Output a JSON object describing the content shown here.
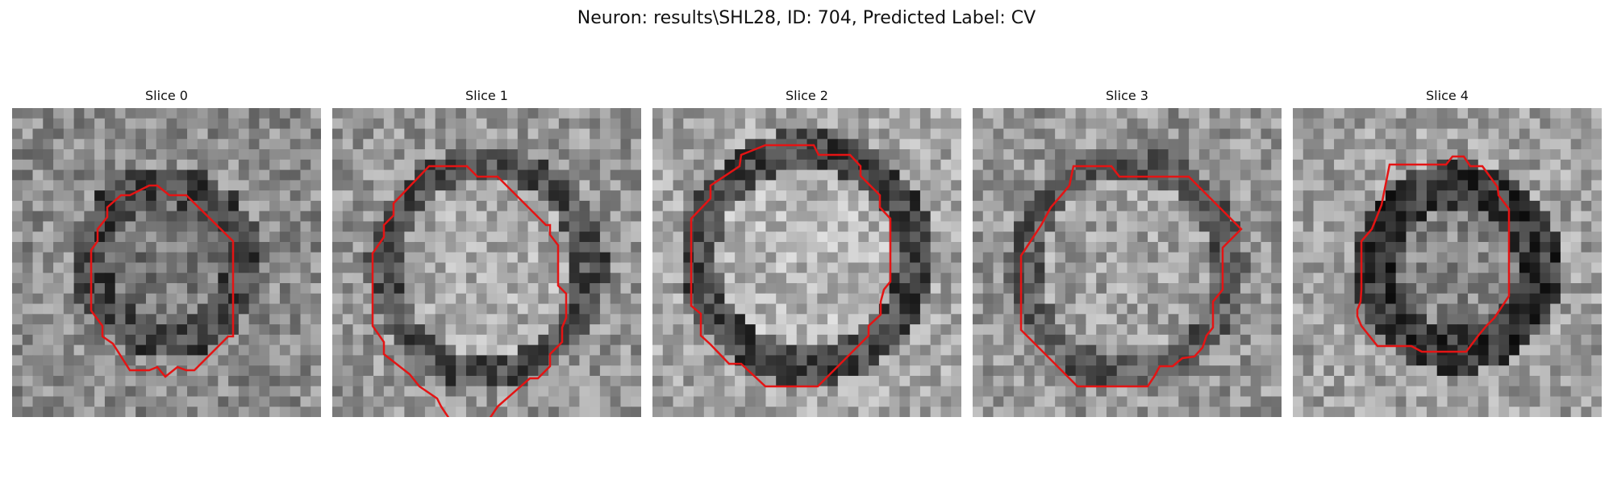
{
  "figure": {
    "title": "Neuron: results\\SHL28, ID: 704, Predicted Label: CV",
    "contour_color": "#e41414"
  },
  "panels": [
    {
      "title": "Slice 0",
      "image": "grayscale-microscopy-patch"
    },
    {
      "title": "Slice 1",
      "image": "grayscale-microscopy-patch"
    },
    {
      "title": "Slice 2",
      "image": "grayscale-microscopy-patch"
    },
    {
      "title": "Slice 3",
      "image": "grayscale-microscopy-patch"
    },
    {
      "title": "Slice 4",
      "image": "grayscale-microscopy-patch"
    }
  ]
}
